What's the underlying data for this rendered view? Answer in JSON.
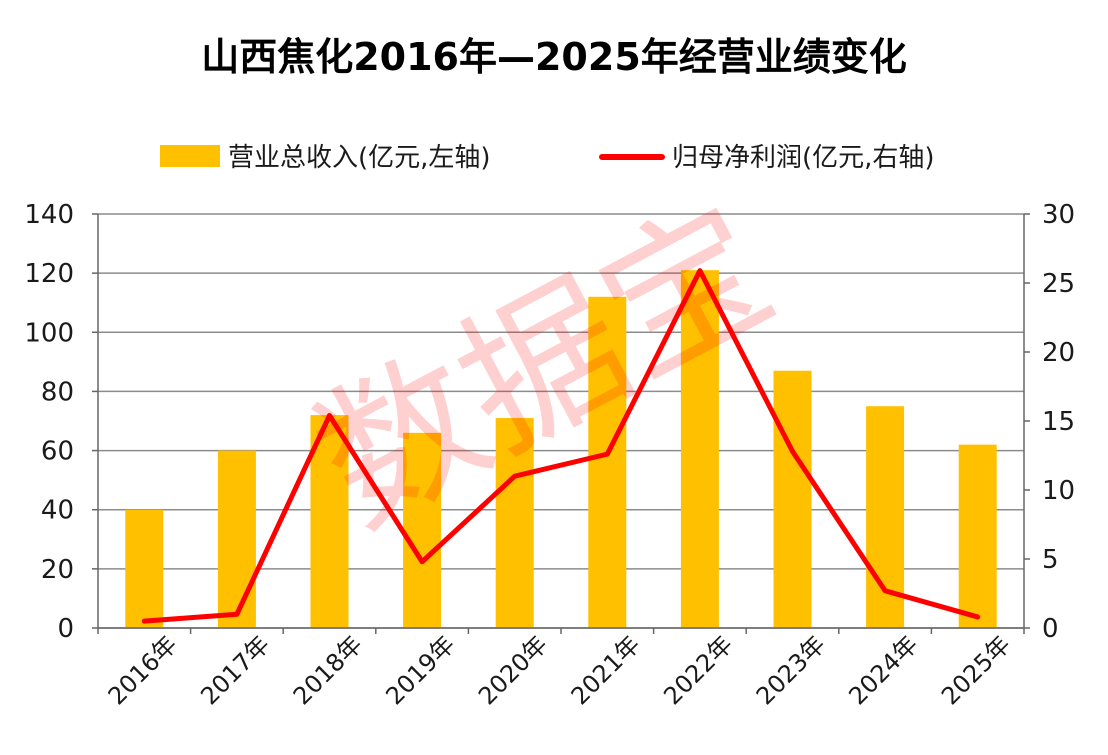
{
  "chart_data": {
    "type": "bar+line",
    "title": "山西焦化2016年—2025年经营业绩变化",
    "categories": [
      "2016年",
      "2017年",
      "2018年",
      "2019年",
      "2020年",
      "2021年",
      "2022年",
      "2023年",
      "2024年",
      "2025年"
    ],
    "series": [
      {
        "name": "营业总收入(亿元,左轴)",
        "chart": "bar",
        "axis": "left",
        "values": [
          40,
          60,
          72,
          66,
          71,
          112,
          121,
          87,
          75,
          62
        ]
      },
      {
        "name": "归母净利润(亿元,右轴)",
        "chart": "line",
        "axis": "right",
        "values": [
          0.5,
          1.0,
          15.4,
          4.8,
          11.0,
          12.6,
          25.9,
          12.8,
          2.7,
          0.8
        ]
      }
    ],
    "left_axis": {
      "ylim": [
        0,
        140
      ],
      "ticks": [
        0,
        20,
        40,
        60,
        80,
        100,
        120,
        140
      ]
    },
    "right_axis": {
      "ylim": [
        0,
        30
      ],
      "ticks": [
        0,
        5,
        10,
        15,
        20,
        25,
        30
      ]
    },
    "grid": true,
    "legend": "top-center",
    "watermark": "数据宝"
  },
  "colors": {
    "bar": "#ffc000",
    "line": "#ff0000",
    "grid": "#8c8c8c",
    "axis": "#666666",
    "text": "#1a1a1a"
  }
}
